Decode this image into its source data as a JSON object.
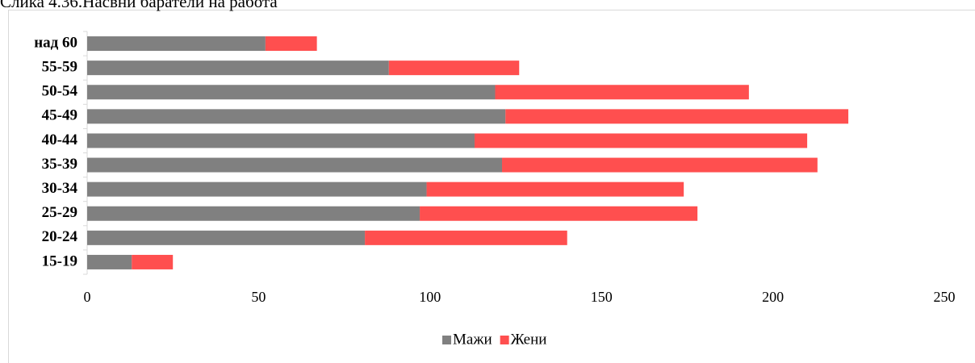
{
  "chart_data": {
    "type": "bar",
    "orientation": "horizontal",
    "stacked": true,
    "title": "Слика 4.36.Насвни баратели на работа",
    "categories": [
      "15-19",
      "20-24",
      "25-29",
      "30-34",
      "35-39",
      "40-44",
      "45-49",
      "50-54",
      "55-59",
      "над 60"
    ],
    "series": [
      {
        "name": "Мажи",
        "color": "#808080",
        "values": [
          13,
          81,
          97,
          99,
          121,
          113,
          122,
          119,
          88,
          52
        ]
      },
      {
        "name": "Жени",
        "color": "#ff4f4f",
        "values": [
          12,
          59,
          81,
          75,
          92,
          97,
          100,
          74,
          38,
          15
        ]
      }
    ],
    "xlim": [
      0,
      250
    ],
    "xticks": [
      0,
      50,
      100,
      150,
      200,
      250
    ],
    "grid": false,
    "legend": "bottom"
  }
}
